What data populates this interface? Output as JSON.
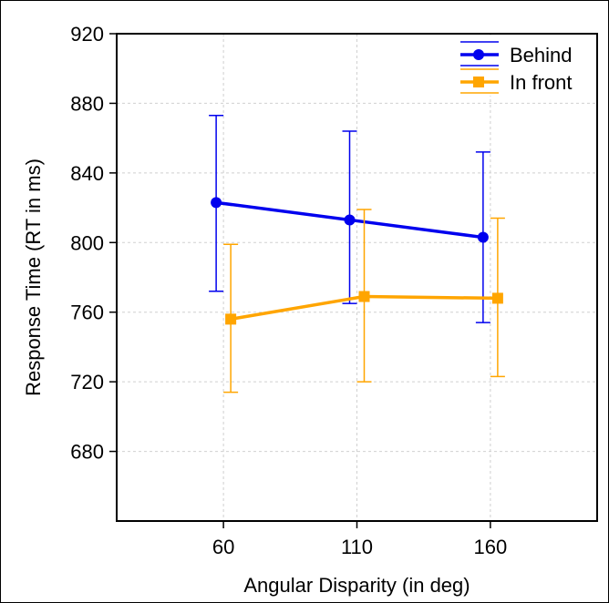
{
  "chart_data": {
    "type": "line",
    "title": "",
    "xlabel": "Angular Disparity (in deg)",
    "ylabel": "Response Time (RT in ms)",
    "x_ticks": [
      60,
      110,
      160
    ],
    "y_ticks": [
      680,
      720,
      760,
      800,
      840,
      880,
      920
    ],
    "ylim": [
      640,
      920
    ],
    "grid": true,
    "legend_position": "top-right",
    "series": [
      {
        "name": "Behind",
        "color": "#0000ee",
        "marker": "circle",
        "x": [
          60,
          110,
          160
        ],
        "y": [
          823,
          813,
          803
        ],
        "error_low": [
          772,
          765,
          754
        ],
        "error_high": [
          873,
          864,
          852
        ]
      },
      {
        "name": "In front",
        "color": "#ffa500",
        "marker": "square",
        "x": [
          60,
          110,
          160
        ],
        "y": [
          756,
          769,
          768
        ],
        "error_low": [
          714,
          720,
          723
        ],
        "error_high": [
          799,
          819,
          814
        ]
      }
    ]
  }
}
